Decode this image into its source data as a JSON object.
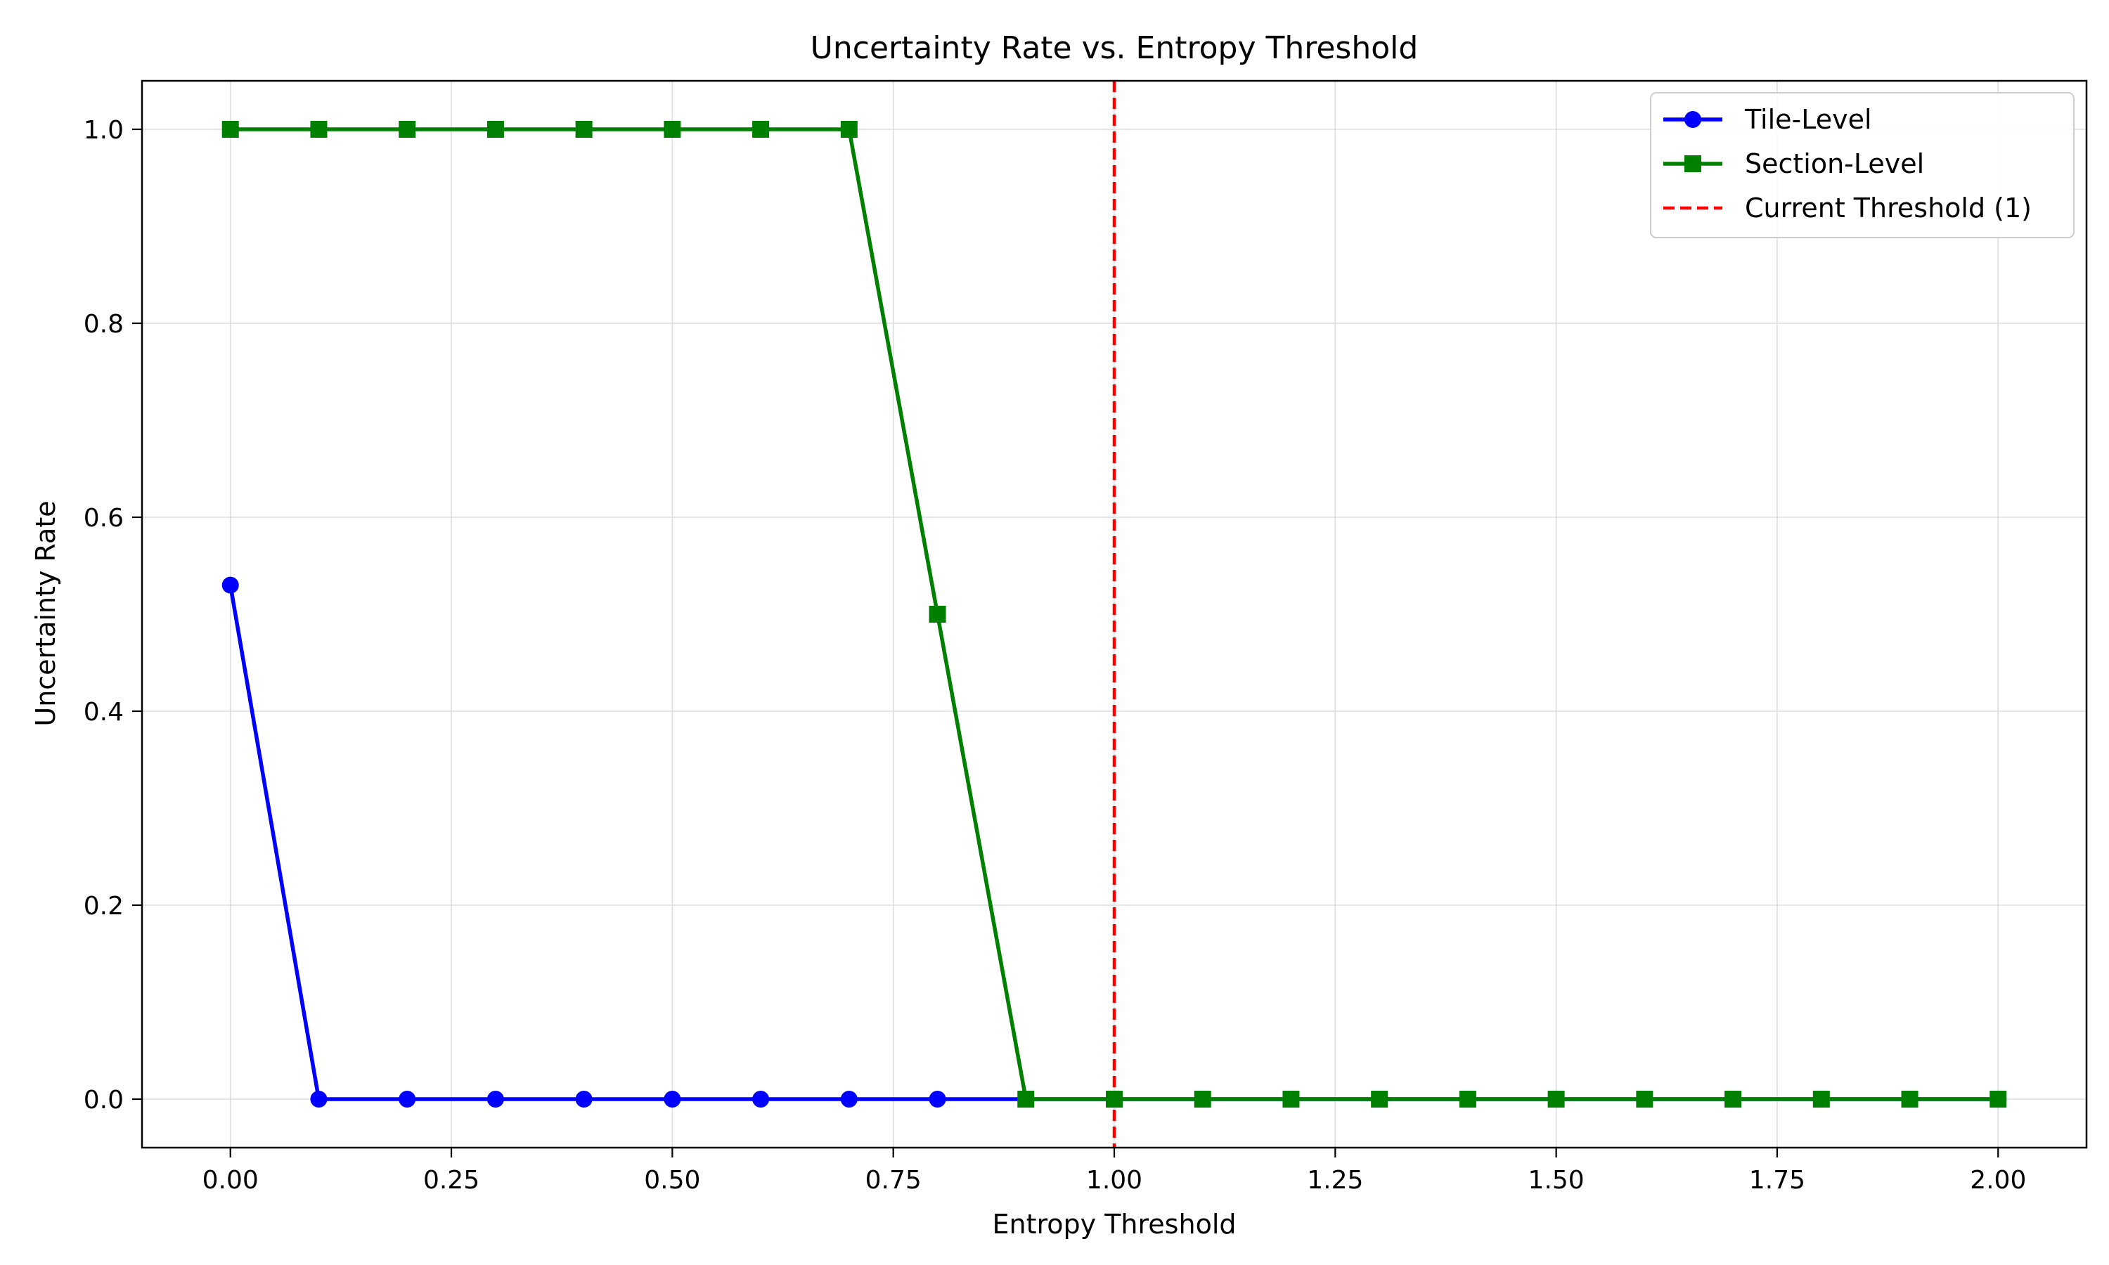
{
  "chart_data": {
    "type": "line",
    "title": "Uncertainty Rate vs. Entropy Threshold",
    "xlabel": "Entropy Threshold",
    "ylabel": "Uncertainty Rate",
    "xlim": [
      -0.1,
      2.1
    ],
    "ylim": [
      -0.05,
      1.05
    ],
    "x_ticks": [
      0.0,
      0.25,
      0.5,
      0.75,
      1.0,
      1.25,
      1.5,
      1.75,
      2.0
    ],
    "x_tick_labels": [
      "0.00",
      "0.25",
      "0.50",
      "0.75",
      "1.00",
      "1.25",
      "1.50",
      "1.75",
      "2.00"
    ],
    "y_ticks": [
      0.0,
      0.2,
      0.4,
      0.6,
      0.8,
      1.0
    ],
    "y_tick_labels": [
      "0.0",
      "0.2",
      "0.4",
      "0.6",
      "0.8",
      "1.0"
    ],
    "grid": true,
    "legend_position": "top-right",
    "x": [
      0.0,
      0.1,
      0.2,
      0.3,
      0.4,
      0.5,
      0.6,
      0.7,
      0.8,
      0.9,
      1.0,
      1.1,
      1.2,
      1.3,
      1.4,
      1.5,
      1.6,
      1.7,
      1.8,
      1.9,
      2.0
    ],
    "series": [
      {
        "name": "Tile-Level",
        "color": "#0000ff",
        "marker": "circle",
        "values": [
          0.53,
          0,
          0,
          0,
          0,
          0,
          0,
          0,
          0,
          0,
          0,
          0,
          0,
          0,
          0,
          0,
          0,
          0,
          0,
          0,
          0
        ]
      },
      {
        "name": "Section-Level",
        "color": "#008000",
        "marker": "square",
        "values": [
          1,
          1,
          1,
          1,
          1,
          1,
          1,
          1,
          0.5,
          0,
          0,
          0,
          0,
          0,
          0,
          0,
          0,
          0,
          0,
          0,
          0
        ]
      }
    ],
    "reference_lines": [
      {
        "name": "Current Threshold (1)",
        "axis": "x",
        "value": 1.0,
        "color": "#ff0000",
        "style": "dashed"
      }
    ]
  }
}
